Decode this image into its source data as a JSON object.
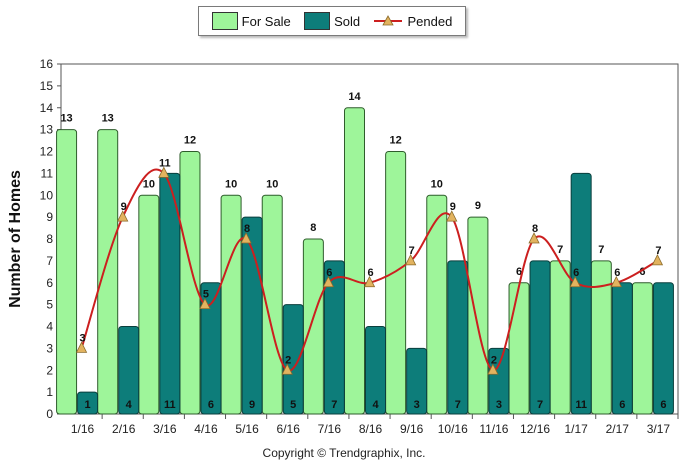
{
  "chart_data": {
    "type": "bar",
    "categories": [
      "1/16",
      "2/16",
      "3/16",
      "4/16",
      "5/16",
      "6/16",
      "7/16",
      "8/16",
      "9/16",
      "10/16",
      "11/16",
      "12/16",
      "1/17",
      "2/17",
      "3/17"
    ],
    "series": [
      {
        "name": "For Sale",
        "type": "bar",
        "color": "#9ef59a",
        "values": [
          13,
          13,
          10,
          12,
          10,
          10,
          8,
          14,
          12,
          10,
          9,
          6,
          7,
          7,
          6
        ]
      },
      {
        "name": "Sold",
        "type": "bar",
        "color": "#0d7d7a",
        "values": [
          1,
          4,
          11,
          6,
          9,
          5,
          7,
          4,
          3,
          7,
          3,
          7,
          11,
          6,
          6
        ]
      },
      {
        "name": "Pended",
        "type": "line",
        "color": "#cc1f1f",
        "marker_color": "#e2b35f",
        "values": [
          3,
          9,
          11,
          5,
          8,
          2,
          6,
          6,
          7,
          9,
          2,
          8,
          6,
          6,
          7
        ]
      }
    ],
    "title": "",
    "xlabel": "",
    "ylabel": "Number of Homes",
    "ylim": [
      0,
      16
    ],
    "yticks": [
      0,
      1,
      2,
      3,
      4,
      5,
      6,
      7,
      8,
      9,
      10,
      11,
      12,
      13,
      14,
      15,
      16
    ],
    "legend_position": "top-center",
    "grid": false
  },
  "footer": {
    "copyright": "Copyright © Trendgraphix, Inc."
  }
}
